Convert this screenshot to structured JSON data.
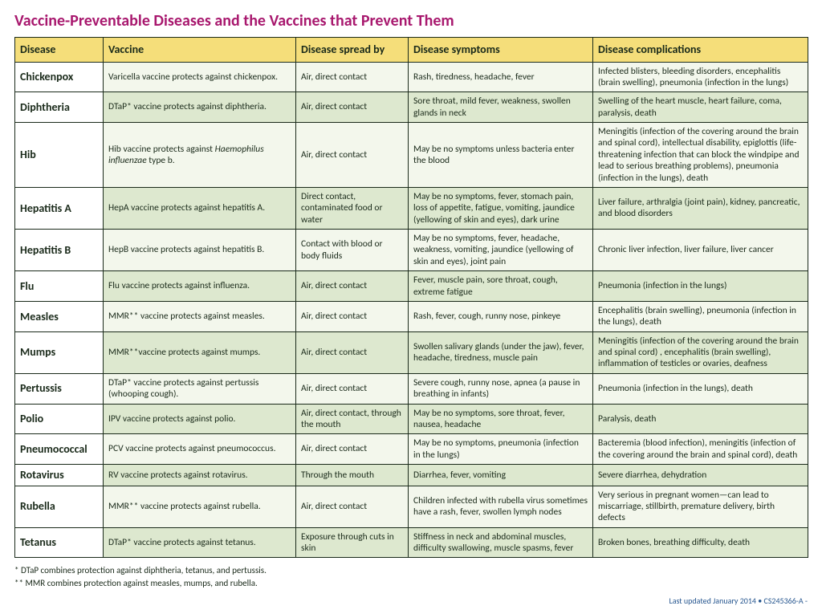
{
  "title": "Vaccine-Preventable Diseases and the Vaccines that Prevent Them",
  "title_color": "#a8186e",
  "header_bg": "#f5de7a",
  "row_alt_bg": "#dde8cf",
  "row_bg": "#f3f7ec",
  "border_color": "#1a2a1a",
  "col_widths": [
    "110px",
    "240px",
    "140px",
    "230px",
    "268px"
  ],
  "columns": [
    "Disease",
    "Vaccine",
    "Disease spread by",
    "Disease symptoms",
    "Disease complications"
  ],
  "rows": [
    {
      "disease": "Chickenpox",
      "vaccine": "Varicella vaccine protects against chickenpox.",
      "spread": "Air, direct contact",
      "symptoms": "Rash, tiredness, headache, fever",
      "complications": "Infected blisters, bleeding disorders, encephalitis (brain swelling), pneumonia (infection in the lungs)"
    },
    {
      "disease": "Diphtheria",
      "vaccine": "DTaP* vaccine protects against diphtheria.",
      "spread": "Air, direct contact",
      "symptoms": "Sore throat, mild fever, weakness, swollen glands in neck",
      "complications": "Swelling of the heart muscle, heart failure, coma, paralysis, death"
    },
    {
      "disease": "Hib",
      "vaccine_html": "Hib vaccine protects against <em class='sci'>Haemophilus influenzae</em> type b.",
      "spread": "Air, direct contact",
      "symptoms": "May be no symptoms unless bacteria enter the blood",
      "complications": "Meningitis (infection of the covering around the brain and spinal cord), intellectual disability, epiglottis (life-threatening infection that can block the windpipe and lead to serious breathing problems), pneumonia (infection in the lungs), death"
    },
    {
      "disease": "Hepatitis A",
      "vaccine": "HepA vaccine protects against hepatitis A.",
      "spread": "Direct contact, contaminated food or water",
      "symptoms": "May be no symptoms, fever, stomach pain, loss of appetite, fatigue, vomiting, jaundice (yellowing of skin and eyes), dark urine",
      "complications": "Liver failure, arthralgia (joint pain), kidney, pancreatic, and blood disorders"
    },
    {
      "disease": "Hepatitis B",
      "vaccine": "HepB vaccine protects against hepatitis B.",
      "spread": "Contact with blood or body fluids",
      "symptoms": "May be no symptoms, fever, headache, weakness, vomiting, jaundice (yellowing of skin and eyes), joint pain",
      "complications": "Chronic liver infection, liver failure, liver cancer"
    },
    {
      "disease": "Flu",
      "vaccine": "Flu vaccine protects against influenza.",
      "spread": "Air, direct contact",
      "symptoms": "Fever, muscle pain, sore throat, cough, extreme fatigue",
      "complications": "Pneumonia (infection in the lungs)"
    },
    {
      "disease": "Measles",
      "vaccine": "MMR** vaccine protects against measles.",
      "spread": "Air, direct contact",
      "symptoms": "Rash, fever, cough, runny nose, pinkeye",
      "complications": "Encephalitis (brain swelling), pneumonia (infection in the lungs), death"
    },
    {
      "disease": "Mumps",
      "vaccine": "MMR**vaccine protects against mumps.",
      "spread": "Air, direct contact",
      "symptoms": "Swollen salivary glands (under the jaw), fever, headache, tiredness, muscle pain",
      "complications": "Meningitis (infection of the covering around the brain and spinal cord) , encephalitis (brain swelling), inflammation of testicles or ovaries, deafness"
    },
    {
      "disease": "Pertussis",
      "vaccine": "DTaP* vaccine protects against pertussis (whooping cough).",
      "spread": "Air, direct contact",
      "symptoms": "Severe cough, runny nose, apnea (a pause in breathing in infants)",
      "complications": "Pneumonia (infection in the lungs), death"
    },
    {
      "disease": "Polio",
      "vaccine": "IPV vaccine protects against polio.",
      "spread": "Air, direct contact, through the mouth",
      "symptoms": "May be no symptoms, sore throat, fever, nausea, headache",
      "complications": "Paralysis, death"
    },
    {
      "disease": "Pneumococcal",
      "vaccine": "PCV vaccine protects against pneumococcus.",
      "spread": "Air, direct contact",
      "symptoms": "May be no symptoms, pneumonia (infection in the lungs)",
      "complications": "Bacteremia (blood infection), meningitis (infection of the covering around the brain and spinal cord), death"
    },
    {
      "disease": "Rotavirus",
      "vaccine": "RV vaccine protects against rotavirus.",
      "spread": "Through the mouth",
      "symptoms": "Diarrhea, fever, vomiting",
      "complications": "Severe diarrhea, dehydration"
    },
    {
      "disease": "Rubella",
      "vaccine": "MMR** vaccine protects against rubella.",
      "spread": "Air, direct contact",
      "symptoms": "Children infected with rubella virus sometimes have a rash, fever, swollen lymph nodes",
      "complications": "Very serious in pregnant women—can lead to miscarriage, stillbirth, premature delivery, birth defects"
    },
    {
      "disease": "Tetanus",
      "vaccine": "DTaP* vaccine protects against tetanus.",
      "spread": "Exposure through cuts in skin",
      "symptoms": "Stiffness in neck and abdominal muscles, difficulty swallowing,  muscle spasms, fever",
      "complications": "Broken bones, breathing difficulty, death"
    }
  ],
  "footnotes": [
    "* DTaP combines protection against diphtheria, tetanus, and pertussis.",
    "** MMR combines protection against measles, mumps, and rubella."
  ],
  "footer_right": "Last updated January 2014 • CS245366-A -",
  "footer_color": "#26568f"
}
